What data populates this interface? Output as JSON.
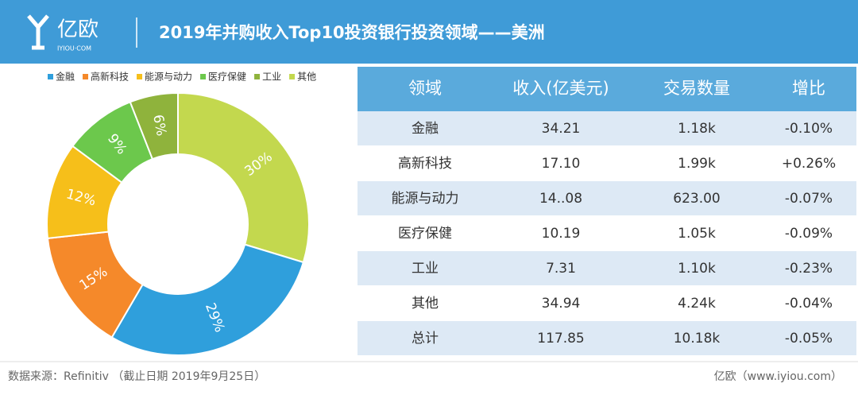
{
  "header": {
    "logo": "亿欧",
    "logo_sub": "IYIOU·COM",
    "title": "2019年并购收入Top10投资银行投资领域——美洲"
  },
  "chart_data": {
    "type": "pie",
    "categories": [
      "金融",
      "高新科技",
      "能源与动力",
      "医疗保健",
      "工业",
      "其他"
    ],
    "values": [
      29,
      15,
      12,
      9,
      6,
      30
    ],
    "value_labels": [
      "29%",
      "15%",
      "12%",
      "9%",
      "6%",
      "30%"
    ],
    "colors": [
      "#2f9fdc",
      "#f5892a",
      "#f6bf1a",
      "#6cc84c",
      "#8fb33c",
      "#c3d84e"
    ],
    "legend": "top"
  },
  "table": {
    "columns": [
      "领域",
      "收入(亿美元)",
      "交易数量",
      "增比"
    ],
    "rows": [
      [
        "金融",
        "34.21",
        "1.18k",
        "-0.10%"
      ],
      [
        "高新科技",
        "17.10",
        "1.99k",
        "+0.26%"
      ],
      [
        "能源与动力",
        "14..08",
        "623.00",
        "-0.07%"
      ],
      [
        "医疗保健",
        "10.19",
        "1.05k",
        "-0.09%"
      ],
      [
        "工业",
        "7.31",
        "1.10k",
        "-0.23%"
      ],
      [
        "其他",
        "34.94",
        "4.24k",
        "-0.04%"
      ],
      [
        "总计",
        "117.85",
        "10.18k",
        "-0.05%"
      ]
    ]
  },
  "footer": {
    "source": "数据来源：Refinitiv （截止日期 2019年9月25日）",
    "brand": "亿欧（www.iyiou.com）"
  }
}
